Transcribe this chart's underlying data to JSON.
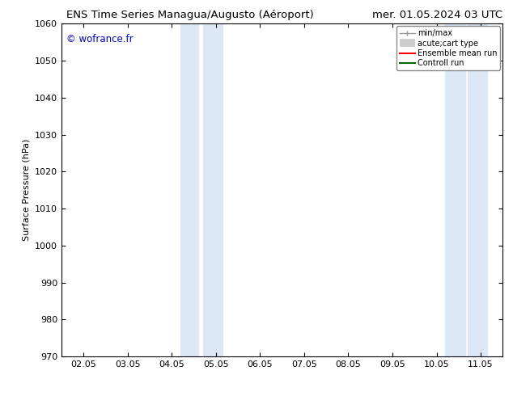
{
  "title_left": "ENS Time Series Managua/Augusto (Aéroport)",
  "title_right": "mer. 01.05.2024 03 UTC",
  "ylabel": "Surface Pressure (hPa)",
  "ylim": [
    970,
    1060
  ],
  "yticks": [
    970,
    980,
    990,
    1000,
    1010,
    1020,
    1030,
    1040,
    1050,
    1060
  ],
  "x_tick_labels": [
    "02.05",
    "03.05",
    "04.05",
    "05.05",
    "06.05",
    "07.05",
    "08.05",
    "09.05",
    "10.05",
    "11.05"
  ],
  "x_tick_positions": [
    1,
    2,
    3,
    4,
    5,
    6,
    7,
    8,
    9,
    10
  ],
  "xlim": [
    0.5,
    10.5
  ],
  "shaded_bands": [
    {
      "x_start": 3.0,
      "x_end": 3.5,
      "color": "#ddeeff"
    },
    {
      "x_start": 3.5,
      "x_end": 4.0,
      "color": "#ddeeff"
    },
    {
      "x_start": 9.0,
      "x_end": 9.5,
      "color": "#ddeeff"
    },
    {
      "x_start": 9.5,
      "x_end": 10.0,
      "color": "#ddeeff"
    }
  ],
  "watermark": "© wofrance.fr",
  "watermark_color": "#0000bb",
  "legend_entries": [
    {
      "label": "min/max",
      "color": "#aaaaaa",
      "lw": 1.0
    },
    {
      "label": "acute;cart type",
      "color": "#cccccc",
      "lw": 5
    },
    {
      "label": "Ensemble mean run",
      "color": "#ff0000",
      "lw": 1.5
    },
    {
      "label": "Controll run",
      "color": "#008000",
      "lw": 1.5
    }
  ],
  "bg_color": "#ffffff",
  "font_size": 8,
  "title_fontsize": 9.5
}
